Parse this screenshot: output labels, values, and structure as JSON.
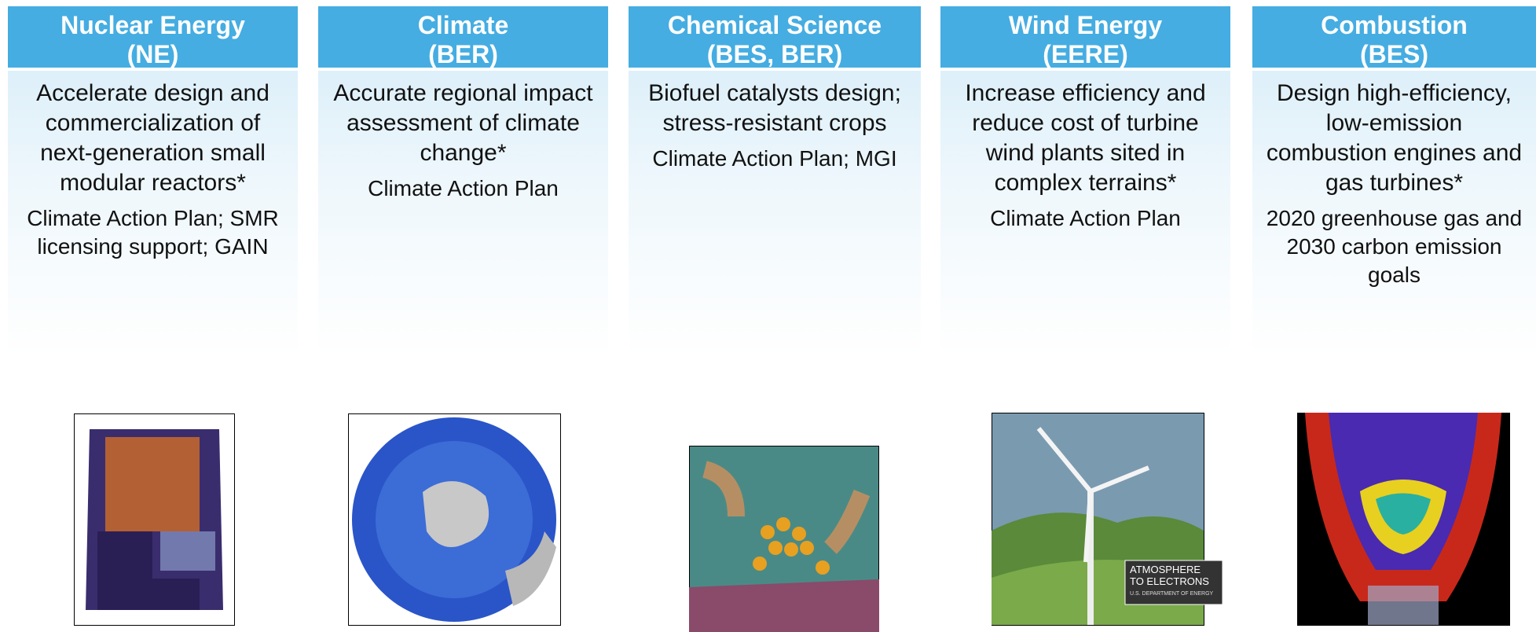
{
  "columns": [
    {
      "title": "Nuclear Energy",
      "program": "(NE)",
      "goal": "Accelerate design and commercialization of next-generation small modular reactors*",
      "policy": "Climate Action Plan; SMR licensing support; GAIN"
    },
    {
      "title": "Climate",
      "program": "(BER)",
      "goal": "Accurate regional impact assessment of climate change*",
      "policy": "Climate Action Plan"
    },
    {
      "title": "Chemical Science",
      "program": "(BES, BER)",
      "goal": "Biofuel catalysts design; stress-resistant crops",
      "policy": "Climate Action Plan; MGI"
    },
    {
      "title": "Wind Energy",
      "program": "(EERE)",
      "goal": "Increase efficiency and reduce cost of turbine wind plants sited in complex terrains*",
      "policy": "Climate Action Plan",
      "image_text": [
        "ATMOSPHERE",
        "TO ELECTRONS",
        "U.S. DEPARTMENT OF ENERGY"
      ]
    },
    {
      "title": "Combustion",
      "program": "(BES)",
      "goal": "Design high-efficiency, low-emission combustion engines and gas turbines*",
      "policy": "2020 greenhouse gas and 2030 carbon emission goals"
    }
  ]
}
